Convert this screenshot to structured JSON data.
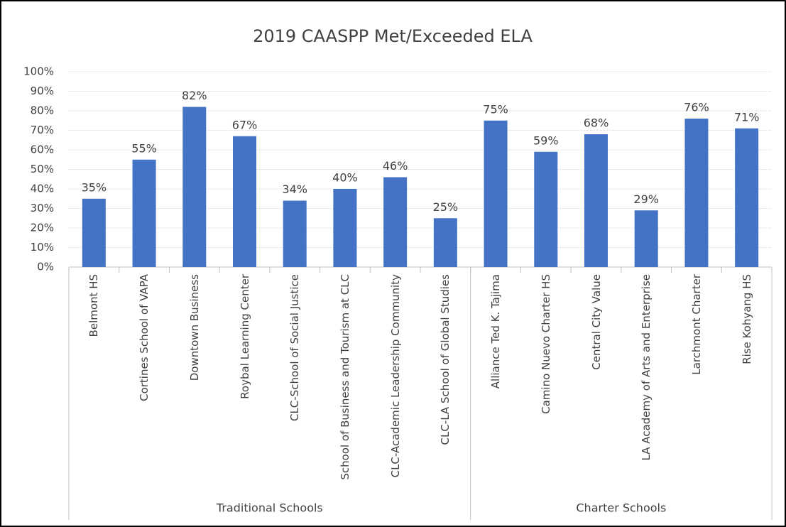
{
  "chart_data": {
    "type": "bar",
    "title": "2019 CAASPP Met/Exceeded ELA",
    "categories": [
      "Belmont HS",
      "Cortines School of VAPA",
      "Downtown Business",
      "Roybal Learning Center",
      "CLC-School of Social Justice",
      "School of Business and Tourism at CLC",
      "CLC-Academic Leadership Community",
      "CLC-LA School of Global Studies",
      "Alliance Ted K. Tajima",
      "Camino Nuevo Charter HS",
      "Central City Value",
      "LA Academy of Arts and Enterprise",
      "Larchmont Charter",
      "Rise Kohyang HS"
    ],
    "values": [
      35,
      55,
      82,
      67,
      34,
      40,
      46,
      25,
      75,
      59,
      68,
      29,
      76,
      71
    ],
    "value_labels": [
      "35%",
      "55%",
      "82%",
      "67%",
      "34%",
      "40%",
      "46%",
      "25%",
      "75%",
      "59%",
      "68%",
      "29%",
      "76%",
      "71%"
    ],
    "groups": [
      {
        "name": "Traditional Schools",
        "count": 8
      },
      {
        "name": "Charter Schools",
        "count": 6
      }
    ],
    "color": "#4472c4",
    "ylim": [
      0,
      100
    ],
    "yticks": [
      {
        "value": 0,
        "label": "0%"
      },
      {
        "value": 10,
        "label": "10%"
      },
      {
        "value": 20,
        "label": "20%"
      },
      {
        "value": 30,
        "label": "30%"
      },
      {
        "value": 40,
        "label": "40%"
      },
      {
        "value": 50,
        "label": "50%"
      },
      {
        "value": 60,
        "label": "60%"
      },
      {
        "value": 70,
        "label": "70%"
      },
      {
        "value": 80,
        "label": "80%"
      },
      {
        "value": 90,
        "label": "90%"
      },
      {
        "value": 100,
        "label": "100%"
      }
    ],
    "grid": true
  }
}
